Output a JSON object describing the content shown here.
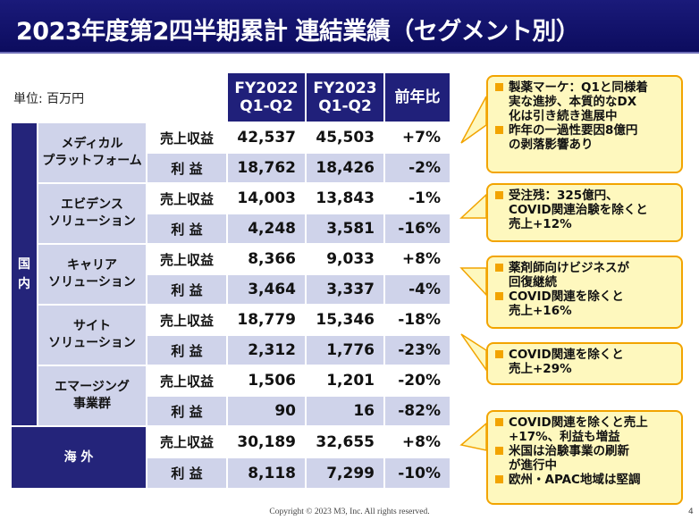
{
  "title": "2023年度第2四半期累計 連結業績（セグメント別）",
  "unit": "単位: 百万円",
  "columns": [
    {
      "line1": "FY2022",
      "line2": "Q1-Q2"
    },
    {
      "line1": "FY2023",
      "line2": "Q1-Q2"
    },
    {
      "line1": "前年比",
      "line2": ""
    }
  ],
  "domestic_label": "国内",
  "domestic_chars": [
    "国",
    "内"
  ],
  "overseas_label": "海 外",
  "metrics": {
    "sales": "売上収益",
    "profit": "利 益"
  },
  "segments": [
    {
      "name": [
        "メディカル",
        "プラットフォーム"
      ],
      "sales": {
        "fy2022": "42,537",
        "fy2023": "45,503",
        "yoy": "+7%"
      },
      "profit": {
        "fy2022": "18,762",
        "fy2023": "18,426",
        "yoy": "-2%"
      }
    },
    {
      "name": [
        "エビデンス",
        "ソリューション"
      ],
      "sales": {
        "fy2022": "14,003",
        "fy2023": "13,843",
        "yoy": "-1%"
      },
      "profit": {
        "fy2022": "4,248",
        "fy2023": "3,581",
        "yoy": "-16%"
      }
    },
    {
      "name": [
        "キャリア",
        "ソリューション"
      ],
      "sales": {
        "fy2022": "8,366",
        "fy2023": "9,033",
        "yoy": "+8%"
      },
      "profit": {
        "fy2022": "3,464",
        "fy2023": "3,337",
        "yoy": "-4%"
      }
    },
    {
      "name": [
        "サイト",
        "ソリューション"
      ],
      "sales": {
        "fy2022": "18,779",
        "fy2023": "15,346",
        "yoy": "-18%"
      },
      "profit": {
        "fy2022": "2,312",
        "fy2023": "1,776",
        "yoy": "-23%"
      }
    },
    {
      "name": [
        "エマージング",
        "事業群"
      ],
      "sales": {
        "fy2022": "1,506",
        "fy2023": "1,201",
        "yoy": "-20%"
      },
      "profit": {
        "fy2022": "90",
        "fy2023": "16",
        "yoy": "-82%"
      }
    }
  ],
  "overseas": {
    "sales": {
      "fy2022": "30,189",
      "fy2023": "32,655",
      "yoy": "+8%"
    },
    "profit": {
      "fy2022": "8,118",
      "fy2023": "7,299",
      "yoy": "-10%"
    }
  },
  "callouts": [
    {
      "items": [
        [
          "製薬マーケ：Q1と同様着",
          "実な進捗、本質的なDX",
          "化は引き続き進展中"
        ],
        [
          "昨年の一過性要因8億円",
          "の剥落影響あり"
        ]
      ]
    },
    {
      "items": [
        [
          "受注残：325億円、",
          "COVID関連治験を除くと",
          "売上+12%"
        ]
      ]
    },
    {
      "items": [
        [
          "薬剤師向けビジネスが",
          "回復継続"
        ],
        [
          "COVID関連を除くと",
          "売上+16%"
        ]
      ]
    },
    {
      "items": [
        [
          "COVID関連を除くと",
          "売上+29%"
        ]
      ]
    },
    {
      "items": [
        [
          "COVID関連を除くと売上",
          "+17%、利益も増益"
        ],
        [
          "米国は治験事業の刷新",
          "が進行中"
        ],
        [
          "欧州・APAC地域は堅調"
        ]
      ]
    }
  ],
  "copyright": "Copyright © 2023  M3, Inc.  All rights reserved.",
  "page_number": "4",
  "colors": {
    "navy": "#20207a",
    "lavender": "#cfd3ea",
    "callout_fill": "#fef8be",
    "callout_border": "#f2a400"
  }
}
